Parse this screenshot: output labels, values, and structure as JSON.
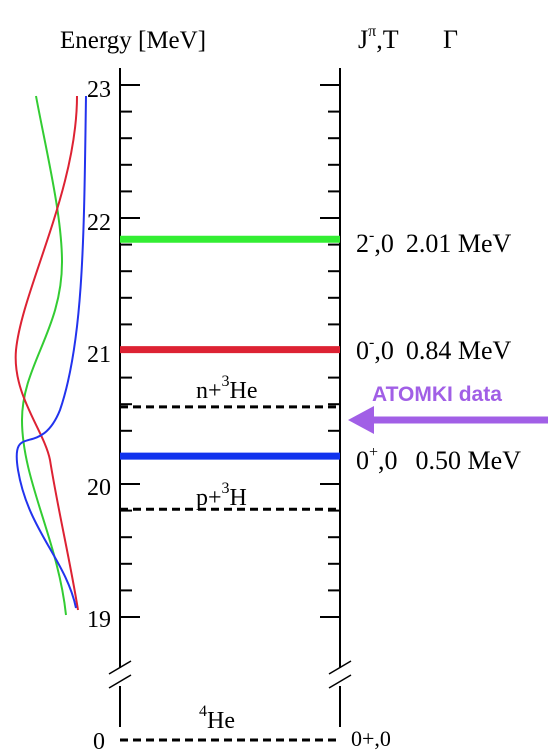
{
  "header": {
    "energy_axis_title": "Energy [MeV]",
    "jpi_t_title": "J",
    "jpi_t_superscript": "π",
    "jpi_t_suffix": ",T",
    "gamma_title": "Γ"
  },
  "axis": {
    "tick_labels": [
      "23",
      "22",
      "21",
      "20",
      "19",
      "0"
    ]
  },
  "levels": [
    {
      "energy_mev": 21.84,
      "color": "#33ee33",
      "j": "2",
      "parity": "-",
      "t": ",0",
      "width": "2.01 MeV"
    },
    {
      "energy_mev": 21.01,
      "color": "#dd2233",
      "j": "0",
      "parity": "-",
      "t": ",0",
      "width": "0.84 MeV"
    },
    {
      "energy_mev": 20.21,
      "color": "#1133ee",
      "j": "0",
      "parity": "+",
      "t": ",0",
      "width": "0.50 MeV"
    }
  ],
  "thresholds": [
    {
      "energy_mev": 20.58,
      "label_main": "n+",
      "label_sup": "3",
      "label_rest": "He"
    },
    {
      "energy_mev": 19.81,
      "label_main": "p+",
      "label_sup": "3",
      "label_rest": "H"
    }
  ],
  "ground_state": {
    "energy_mev": 0,
    "label_sup": "4",
    "label_rest": "He",
    "right_label": "0+,0"
  },
  "annotation": {
    "text": "ATOMKI data",
    "color": "#a15fe6",
    "direction": "left"
  },
  "curves": [
    {
      "color": "#33cc33",
      "level_index": 0
    },
    {
      "color": "#dd2233",
      "level_index": 1
    },
    {
      "color": "#2233ee",
      "level_index": 2
    }
  ]
}
